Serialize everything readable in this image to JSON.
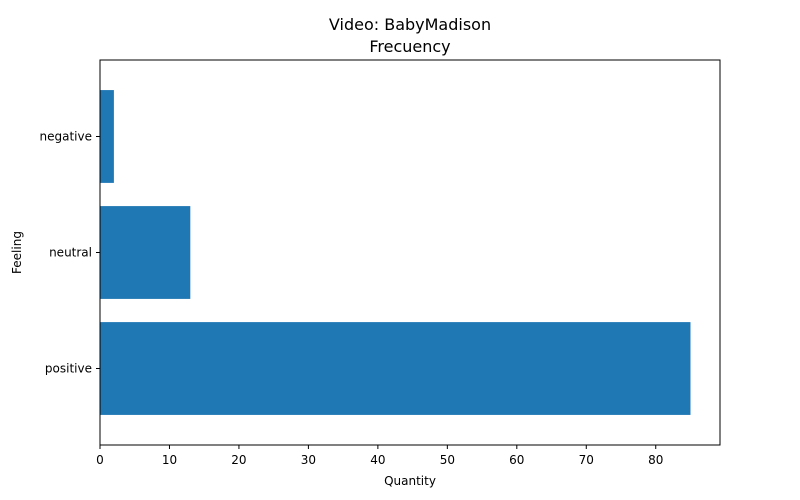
{
  "chart_data": {
    "type": "bar",
    "orientation": "horizontal",
    "title": "Video: BabyMadison",
    "subtitle": "Frecuency",
    "xlabel": "Quantity",
    "ylabel": "Feeling",
    "categories": [
      "positive",
      "neutral",
      "negative"
    ],
    "values": [
      85,
      13,
      2
    ],
    "xlim": [
      0,
      89.25
    ],
    "xticks": [
      0,
      10,
      20,
      30,
      40,
      50,
      60,
      70,
      80
    ],
    "grid": false,
    "legend": "none",
    "bar_color": "#1f77b4"
  }
}
